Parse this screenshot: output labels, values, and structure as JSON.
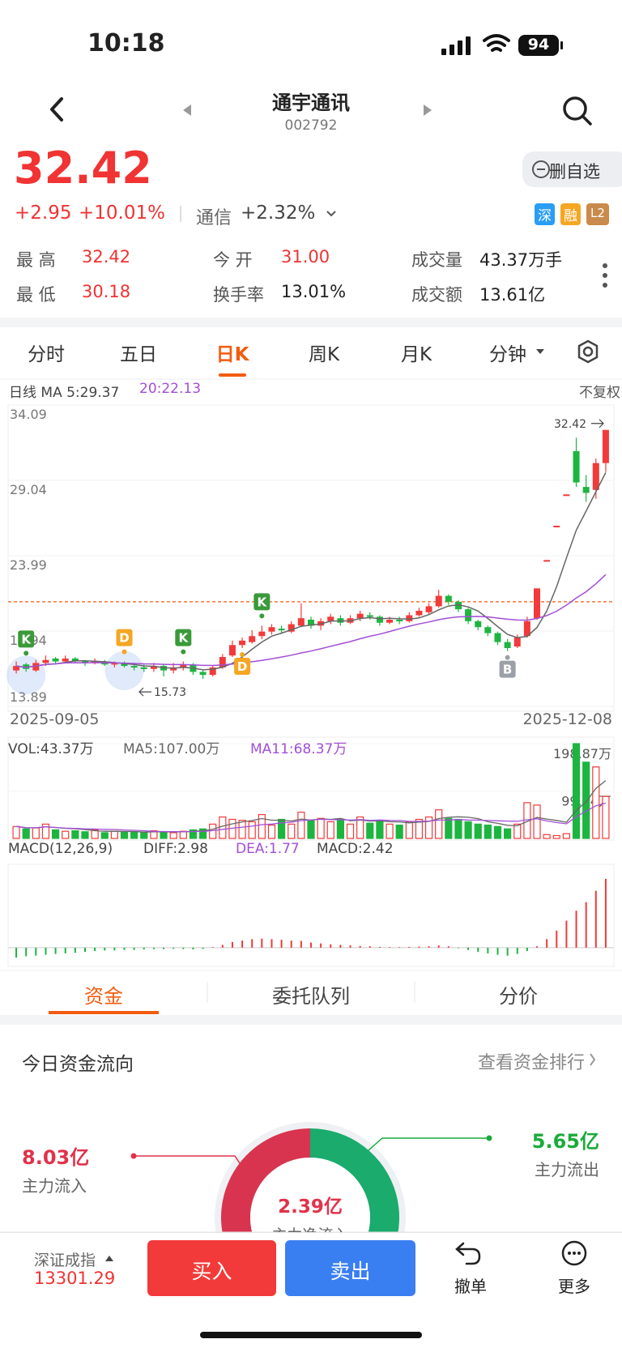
{
  "status_bar": {
    "time": "10:18",
    "battery": "94"
  },
  "header": {
    "name": "通宇通讯",
    "code": "002792"
  },
  "quote": {
    "price": "32.42",
    "change": "+2.95",
    "change_pct": "+10.01%",
    "sector": "通信",
    "sector_change": "+2.32%",
    "watch_button": "删自选",
    "badges": [
      "深",
      "融",
      "L2"
    ],
    "stats": [
      {
        "label": "最 高",
        "value": "32.42"
      },
      {
        "label": "今 开",
        "value": "31.00"
      },
      {
        "label": "成交量",
        "value": "43.37万手"
      },
      {
        "label": "最 低",
        "value": "30.18"
      },
      {
        "label": "换手率",
        "value": "13.01%"
      },
      {
        "label": "成交额",
        "value": "13.61亿"
      }
    ]
  },
  "tabs": [
    "分时",
    "五日",
    "日K",
    "周K",
    "月K",
    "分钟"
  ],
  "kline": {
    "type": "candlestick",
    "ma5_label": "日线 MA 5:29.37",
    "ma20_label": "20:22.13",
    "adjust": "不复权",
    "ylim": [
      13.89,
      34.09
    ],
    "yticks": [
      34.09,
      29.04,
      23.99,
      18.94,
      13.89
    ],
    "x_start": "2025-09-05",
    "x_end": "2025-12-08",
    "high_label": "32.42",
    "low_label": "15.73",
    "cost_line": 20.9,
    "markers": [
      "K",
      "D",
      "K",
      "D",
      "K",
      "B"
    ],
    "candles": [
      [
        16.3,
        16.6,
        16.9,
        16.1
      ],
      [
        16.7,
        16.4,
        16.8,
        16.2
      ],
      [
        16.3,
        16.8,
        17.0,
        16.2
      ],
      [
        16.8,
        17.0,
        17.3,
        16.6
      ],
      [
        17.1,
        16.9,
        17.2,
        16.7
      ],
      [
        16.9,
        17.1,
        17.3,
        16.8
      ],
      [
        17.1,
        16.9,
        17.2,
        16.8
      ],
      [
        16.9,
        16.8,
        17.0,
        16.6
      ],
      [
        16.8,
        16.9,
        17.1,
        16.7
      ],
      [
        16.9,
        16.7,
        17.0,
        16.6
      ],
      [
        16.7,
        16.8,
        16.9,
        16.5
      ],
      [
        16.8,
        16.6,
        16.9,
        16.5
      ],
      [
        16.6,
        16.5,
        16.8,
        16.3
      ],
      [
        16.5,
        16.4,
        16.7,
        16.2
      ],
      [
        16.4,
        16.6,
        16.8,
        16.2
      ],
      [
        16.6,
        16.3,
        16.7,
        15.9
      ],
      [
        16.3,
        16.5,
        16.8,
        16.1
      ],
      [
        16.5,
        16.7,
        16.9,
        16.3
      ],
      [
        16.7,
        16.2,
        16.8,
        16.0
      ],
      [
        16.2,
        16.0,
        16.3,
        15.73
      ],
      [
        16.0,
        16.5,
        16.6,
        15.9
      ],
      [
        16.5,
        17.2,
        17.4,
        16.4
      ],
      [
        17.3,
        18.0,
        18.3,
        17.2
      ],
      [
        18.0,
        18.3,
        18.5,
        17.8
      ],
      [
        18.2,
        18.6,
        19.0,
        18.1
      ],
      [
        18.6,
        18.9,
        19.3,
        18.4
      ],
      [
        18.9,
        19.2,
        19.4,
        18.7
      ],
      [
        19.1,
        19.0,
        19.3,
        18.8
      ],
      [
        18.9,
        19.4,
        19.6,
        18.8
      ],
      [
        19.3,
        19.8,
        20.8,
        19.2
      ],
      [
        19.7,
        19.3,
        19.9,
        19.1
      ],
      [
        19.3,
        19.6,
        19.8,
        19.0
      ],
      [
        19.6,
        19.9,
        20.1,
        19.4
      ],
      [
        19.8,
        19.5,
        20.0,
        19.3
      ],
      [
        19.5,
        19.8,
        20.0,
        19.4
      ],
      [
        19.8,
        20.1,
        20.3,
        19.6
      ],
      [
        20.0,
        19.9,
        20.2,
        19.7
      ],
      [
        19.9,
        19.5,
        20.0,
        19.3
      ],
      [
        19.5,
        19.7,
        19.9,
        19.4
      ],
      [
        19.7,
        19.6,
        19.9,
        19.4
      ],
      [
        19.6,
        20.0,
        20.2,
        19.5
      ],
      [
        20.0,
        20.3,
        20.5,
        19.9
      ],
      [
        20.2,
        20.6,
        20.8,
        20.0
      ],
      [
        20.6,
        21.3,
        21.7,
        20.5
      ],
      [
        21.3,
        20.9,
        21.4,
        20.7
      ],
      [
        20.9,
        20.4,
        21.0,
        20.2
      ],
      [
        20.4,
        19.6,
        20.5,
        19.4
      ],
      [
        19.6,
        19.2,
        19.7,
        19.0
      ],
      [
        19.2,
        18.8,
        19.3,
        18.6
      ],
      [
        18.8,
        18.2,
        18.9,
        18.0
      ],
      [
        18.2,
        17.8,
        18.4,
        17.6
      ],
      [
        17.9,
        18.5,
        18.7,
        17.8
      ],
      [
        18.6,
        19.6,
        19.9,
        18.5
      ],
      [
        19.8,
        21.8,
        21.8,
        19.7
      ],
      [
        23.7,
        23.7,
        23.7,
        23.7
      ],
      [
        26.0,
        26.0,
        26.0,
        26.0
      ],
      [
        28.1,
        28.1,
        28.1,
        28.1
      ],
      [
        31.0,
        28.9,
        31.9,
        28.6
      ],
      [
        28.6,
        28.2,
        29.4,
        27.6
      ],
      [
        28.4,
        30.2,
        30.5,
        27.8
      ],
      [
        30.2,
        32.42,
        32.42,
        29.6
      ]
    ]
  },
  "volume": {
    "label": "VOL:43.37万",
    "ma5_label": "MA5:107.00万",
    "ma11_label": "MA11:68.37万",
    "ylim": [
      0,
      198.87
    ],
    "yticks": [
      {
        "value": 198.87,
        "label": "198.87万"
      },
      {
        "value": 99.44,
        "label": "99.44万"
      }
    ],
    "values": [
      25,
      20,
      22,
      30,
      18,
      15,
      16,
      14,
      18,
      12,
      15,
      13,
      14,
      12,
      16,
      14,
      12,
      15,
      18,
      20,
      30,
      45,
      40,
      38,
      35,
      50,
      28,
      40,
      30,
      55,
      38,
      42,
      35,
      40,
      30,
      45,
      32,
      38,
      30,
      28,
      35,
      40,
      45,
      60,
      42,
      40,
      35,
      30,
      28,
      25,
      20,
      30,
      75,
      70,
      8,
      6,
      10,
      198.87,
      160,
      150,
      88
    ]
  },
  "macd": {
    "label": "MACD(12,26,9)",
    "diff_label": "DIFF:2.98",
    "dea_label": "DEA:1.77",
    "macd_label": "MACD:2.42",
    "ylim": [
      -0.63,
      2.93
    ],
    "values": [
      -0.35,
      -0.3,
      -0.28,
      -0.25,
      -0.22,
      -0.2,
      -0.18,
      -0.15,
      -0.12,
      -0.1,
      -0.1,
      -0.08,
      -0.08,
      -0.06,
      -0.05,
      -0.05,
      -0.04,
      -0.05,
      -0.06,
      -0.04,
      0.02,
      0.1,
      0.2,
      0.25,
      0.3,
      0.32,
      0.3,
      0.28,
      0.25,
      0.24,
      0.18,
      0.15,
      0.12,
      0.1,
      0.08,
      0.06,
      0.05,
      0.03,
      0.02,
      0.02,
      0.03,
      0.04,
      0.05,
      0.08,
      0.05,
      -0.02,
      -0.08,
      -0.15,
      -0.2,
      -0.25,
      -0.28,
      -0.22,
      -0.12,
      0.05,
      0.3,
      0.6,
      0.95,
      1.3,
      1.6,
      2.0,
      2.42
    ]
  },
  "fund_tabs": [
    "资金",
    "委托队列",
    "分价"
  ],
  "fund_flow": {
    "title": "今日资金流向",
    "link": "查看资金排行",
    "inflow": {
      "value": 8.03,
      "value_label": "8.03亿",
      "label": "主力流入"
    },
    "outflow": {
      "value": 5.65,
      "value_label": "5.65亿",
      "label": "主力流出"
    },
    "net": {
      "value": 2.39,
      "value_label": "2.39亿",
      "label": "主力净流入"
    }
  },
  "bottom_bar": {
    "index_name": "深证成指",
    "index_value": "13301.29",
    "buy": "买入",
    "sell": "卖出",
    "cancel": "撤单",
    "more": "更多"
  }
}
